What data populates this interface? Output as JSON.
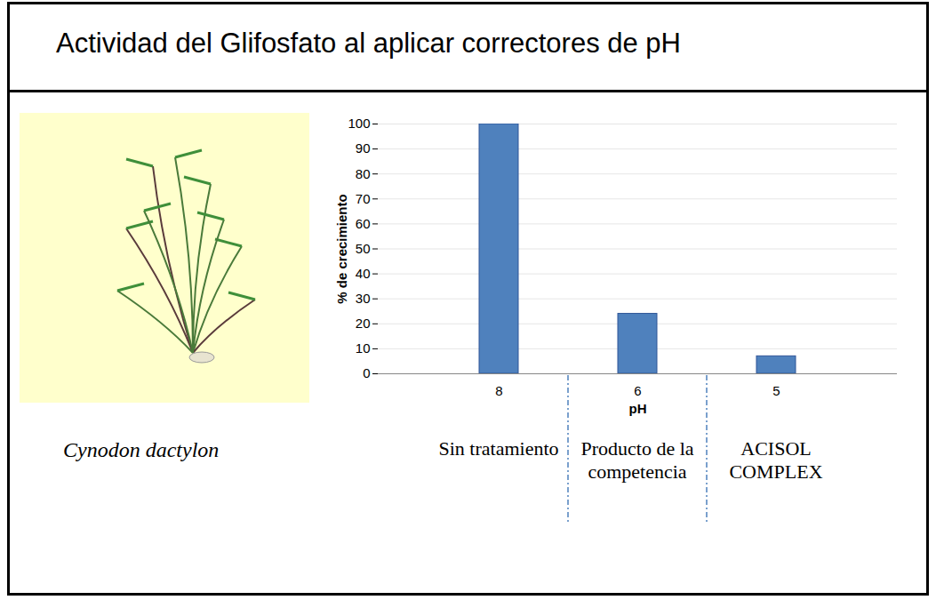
{
  "title": "Actividad del Glifosfato al aplicar correctores de pH",
  "caption": "Cynodon dactylon",
  "chart_data": {
    "type": "bar",
    "categories": [
      "8",
      "6",
      "5"
    ],
    "values": [
      100,
      24,
      7
    ],
    "treatments": [
      "Sin tratamiento",
      "Producto de la competencia",
      "ACISOL COMPLEX"
    ],
    "color": "#4f81bd",
    "x_label": "pH",
    "y_label": "% de crecimiento",
    "ylim": [
      0,
      100
    ],
    "yticks": [
      0,
      10,
      20,
      30,
      40,
      50,
      60,
      70,
      80,
      90,
      100
    ],
    "grid": true
  }
}
